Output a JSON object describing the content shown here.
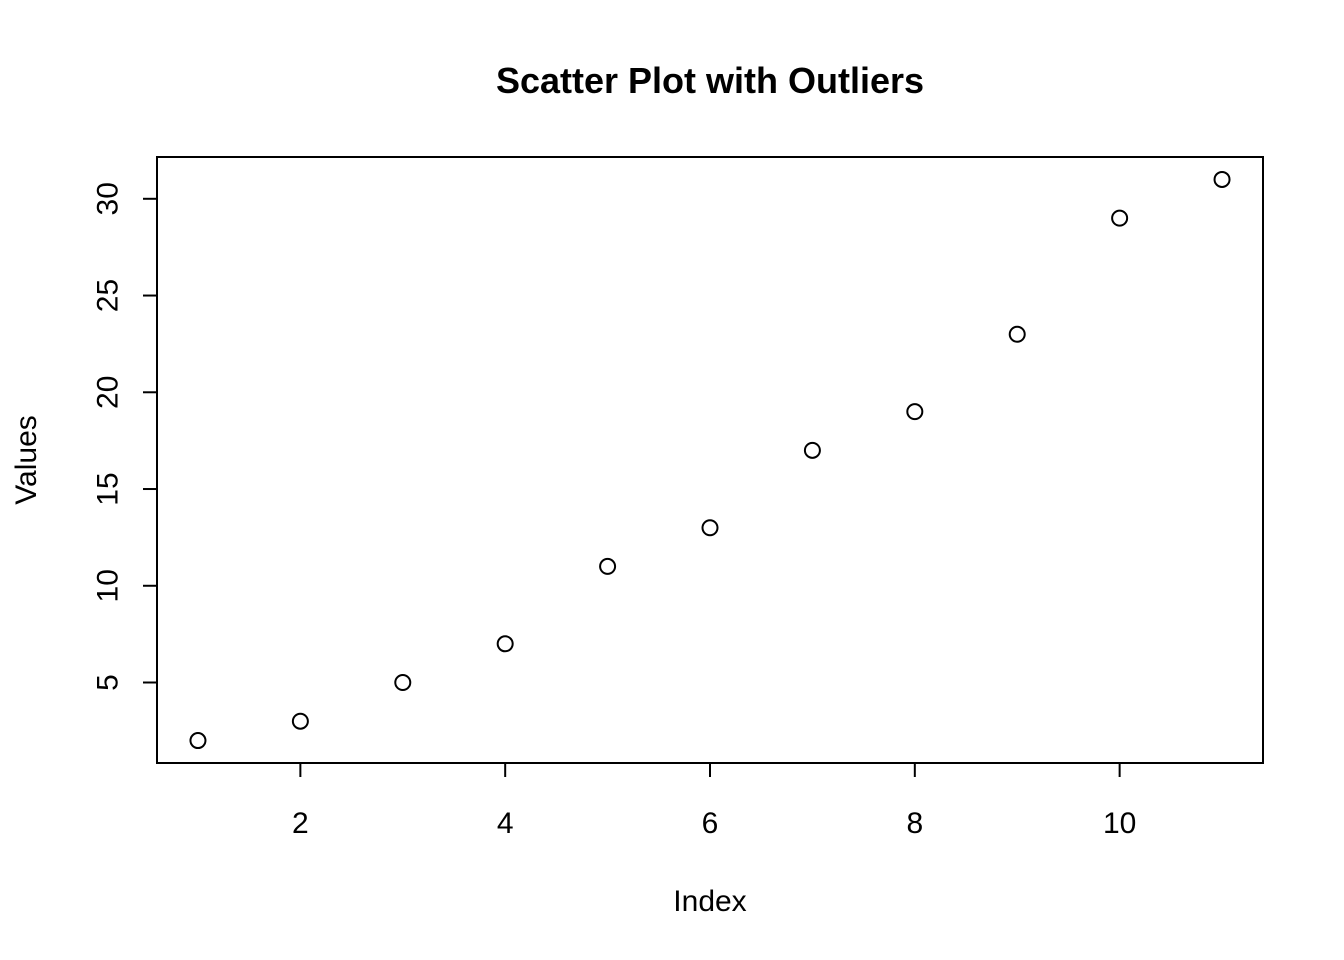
{
  "chart_data": {
    "type": "scatter",
    "title": "Scatter Plot with Outliers",
    "xlabel": "Index",
    "ylabel": "Values",
    "x": [
      1,
      2,
      3,
      4,
      5,
      6,
      7,
      8,
      9,
      10,
      11
    ],
    "y": [
      2,
      3,
      5,
      7,
      11,
      13,
      17,
      19,
      23,
      29,
      31
    ],
    "xlim": [
      0.6,
      11.4
    ],
    "ylim": [
      0.84,
      32.16
    ],
    "xticks": [
      2,
      4,
      6,
      8,
      10
    ],
    "yticks": [
      5,
      10,
      15,
      20,
      25,
      30
    ],
    "grid": false,
    "marker": "open-circle",
    "point_color": "#000000"
  }
}
